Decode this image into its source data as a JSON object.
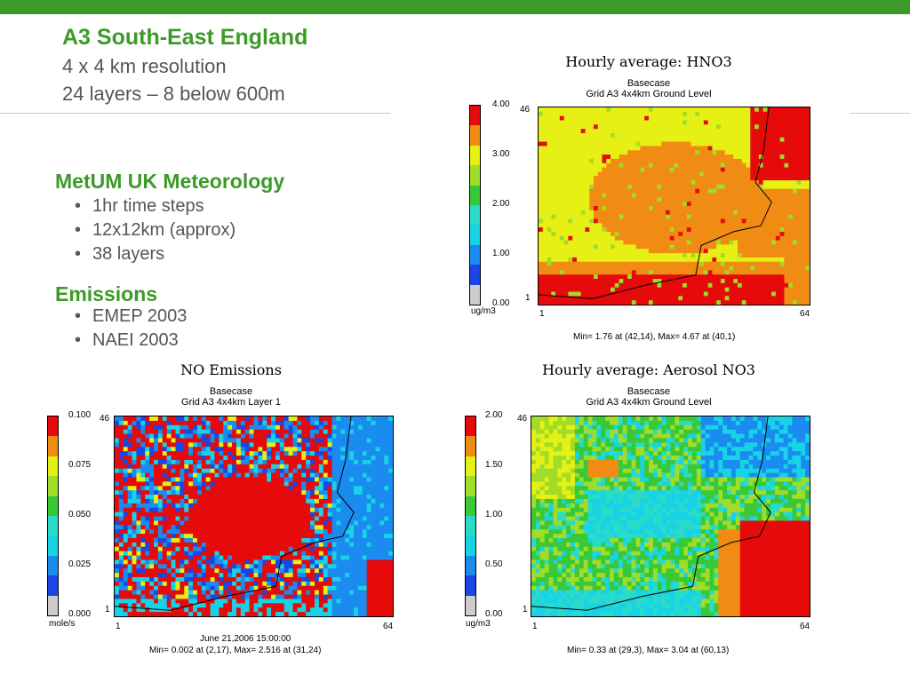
{
  "slide": {
    "title": "A3 South-East England",
    "subtitle_1": "4 x 4 km resolution",
    "subtitle_2": "24 layers – 8 below 600m",
    "sections": [
      {
        "heading": "MetUM UK Meteorology",
        "bullets": [
          "1hr time steps",
          "12x12km (approx)",
          "38 layers"
        ]
      },
      {
        "heading": "Emissions",
        "bullets": [
          "EMEP 2003",
          "NAEI 2003"
        ]
      }
    ],
    "accent_color": "#3c9a28"
  },
  "colorbar_colors": [
    "#cccccc",
    "#1a46e6",
    "#1a8cf0",
    "#18d2e6",
    "#2adcc8",
    "#38c838",
    "#a0dc28",
    "#e6f014",
    "#f08c14",
    "#e60a0a"
  ],
  "panels": [
    {
      "title": "Hourly average: HNO3",
      "basecase": "Basecase",
      "grid": "Grid A3 4x4km Ground Level",
      "scale_ticks": [
        "4.00",
        "3.00",
        "2.00",
        "1.00",
        "0.00"
      ],
      "unit": "ug/m3",
      "y_top": "46",
      "y_bottom": "1",
      "x_left": "1",
      "x_right": "64",
      "date": "",
      "stats": "Min=    1.76 at (42,14), Max=    4.67 at (40,1)",
      "scale_min": 0,
      "scale_max": 4.0
    },
    {
      "title": "NO Emissions",
      "basecase": "Basecase",
      "grid": "Grid A3 4x4km Layer 1",
      "scale_ticks": [
        "0.100",
        "0.075",
        "0.050",
        "0.025",
        "0.000"
      ],
      "unit": "mole/s",
      "y_top": "46",
      "y_bottom": "1",
      "x_left": "1",
      "x_right": "64",
      "date": "June 21,2006 15:00:00",
      "stats": "Min=    0.002 at (2,17), Max=    2.516 at (31,24)",
      "scale_min": 0,
      "scale_max": 0.1
    },
    {
      "title": "Hourly average: Aerosol NO3",
      "basecase": "Basecase",
      "grid": "Grid A3 4x4km Ground Level",
      "scale_ticks": [
        "2.00",
        "1.50",
        "1.00",
        "0.50",
        "0.00"
      ],
      "unit": "ug/m3",
      "y_top": "46",
      "y_bottom": "1",
      "x_left": "1",
      "x_right": "64",
      "date": "",
      "stats": "Min=    0.33 at (29,3), Max=    3.04 at (60,13)",
      "scale_min": 0,
      "scale_max": 2.0
    }
  ]
}
